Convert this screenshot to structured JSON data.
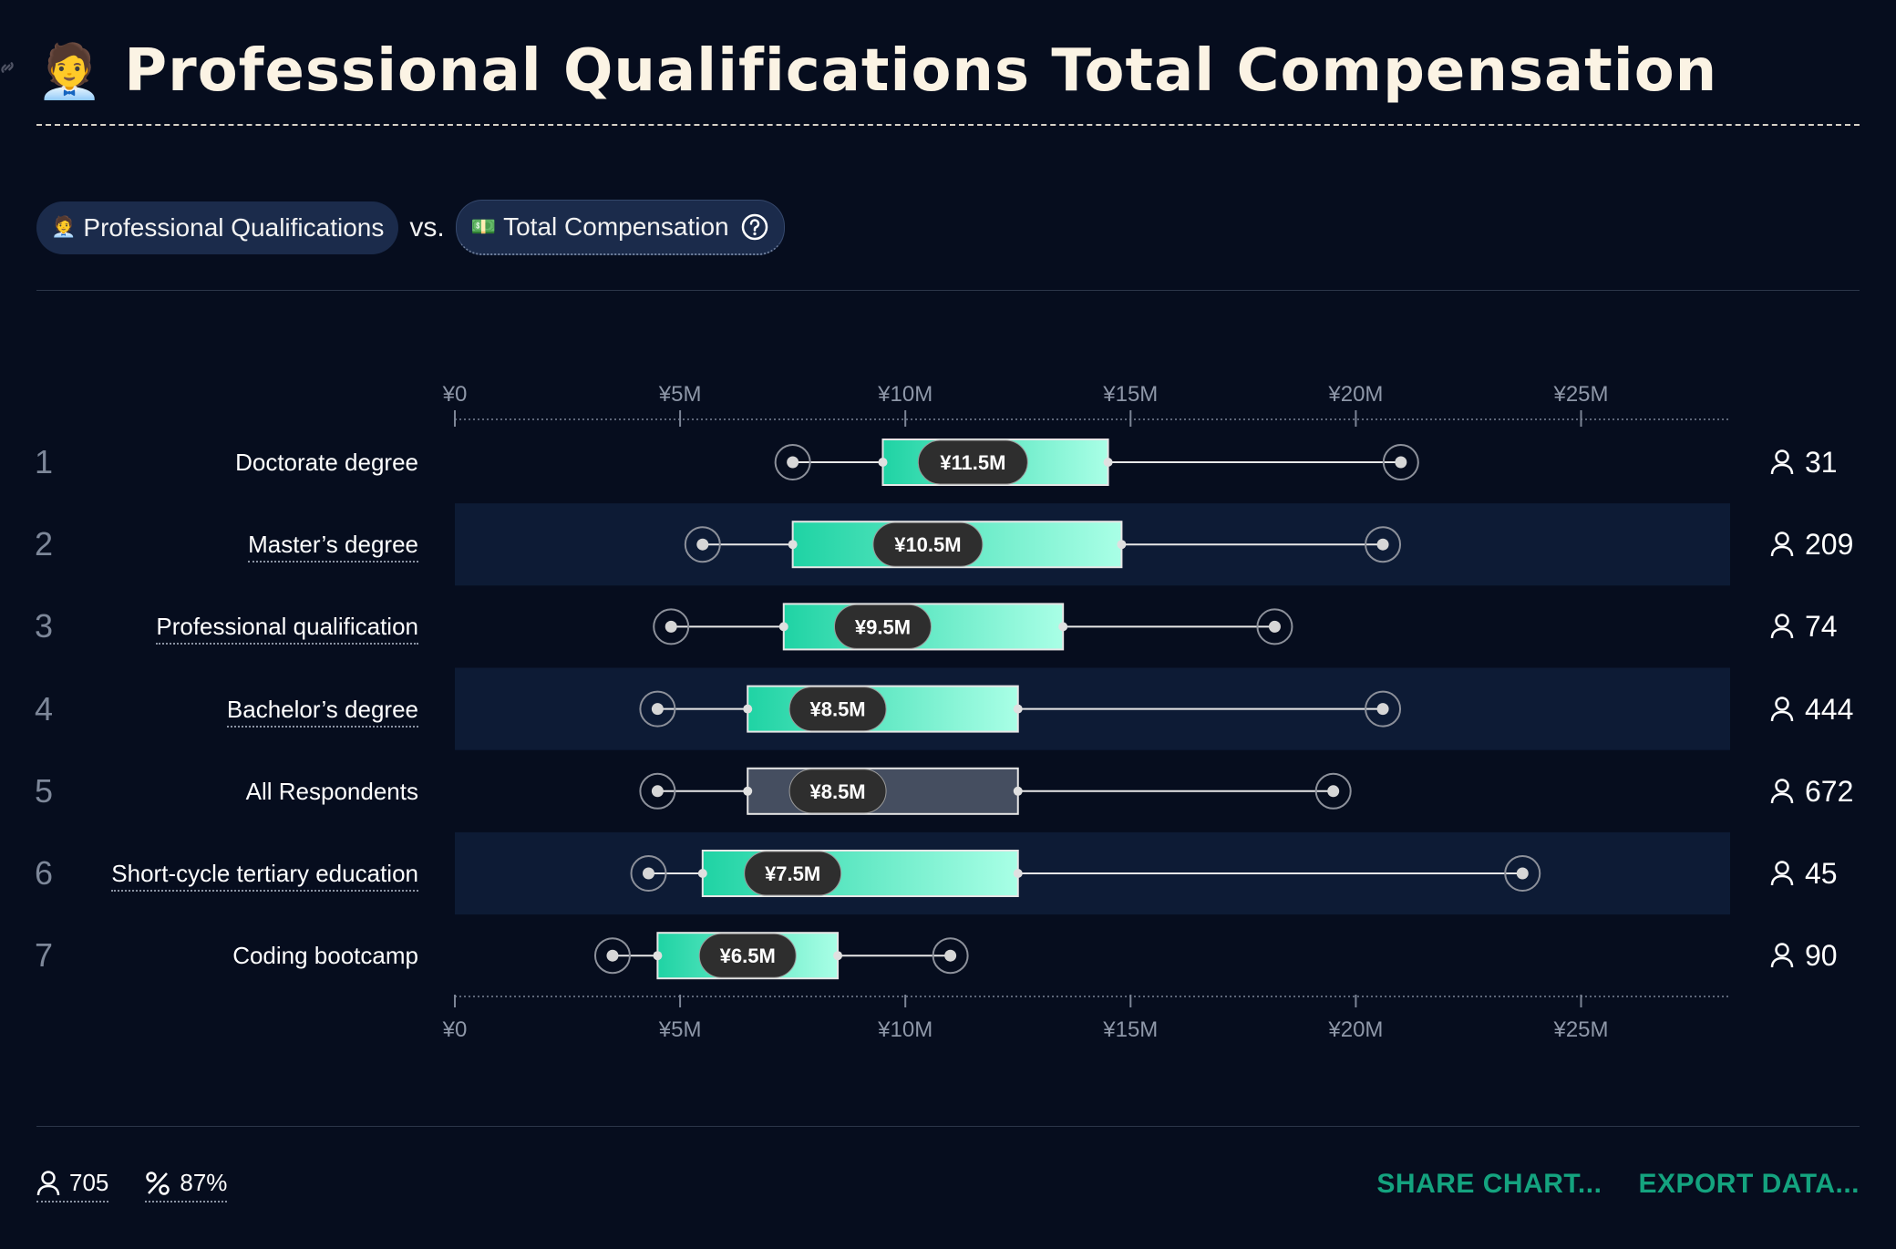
{
  "header": {
    "emoji": "🧑‍💼",
    "title": "Professional Qualifications Total Compensation"
  },
  "selectors": {
    "left": {
      "emoji": "🧑‍💼",
      "label": "Professional Qualifications"
    },
    "vs": "vs.",
    "right": {
      "emoji": "💵",
      "label": "Total Compensation"
    }
  },
  "chart_data": {
    "type": "boxplot",
    "x_ticks": [
      "¥0",
      "¥5M",
      "¥10M",
      "¥15M",
      "¥20M",
      "¥25M"
    ],
    "x_tick_values": [
      0,
      5,
      10,
      15,
      20,
      25
    ],
    "xlim": [
      0,
      28.4
    ],
    "units": "millions of yen",
    "rows": [
      {
        "rank": "1",
        "label": "Doctorate degree",
        "underlined": false,
        "min": 7.5,
        "q1": 9.5,
        "median": 11.5,
        "median_label": "¥11.5M",
        "q3": 14.5,
        "max": 21.0,
        "count": "31",
        "highlight": false
      },
      {
        "rank": "2",
        "label": "Master’s degree",
        "underlined": true,
        "min": 5.5,
        "q1": 7.5,
        "median": 10.5,
        "median_label": "¥10.5M",
        "q3": 14.8,
        "max": 20.6,
        "count": "209",
        "highlight": false
      },
      {
        "rank": "3",
        "label": "Professional qualification",
        "underlined": true,
        "min": 4.8,
        "q1": 7.3,
        "median": 9.5,
        "median_label": "¥9.5M",
        "q3": 13.5,
        "max": 18.2,
        "count": "74",
        "highlight": false
      },
      {
        "rank": "4",
        "label": "Bachelor’s degree",
        "underlined": true,
        "min": 4.5,
        "q1": 6.5,
        "median": 8.5,
        "median_label": "¥8.5M",
        "q3": 12.5,
        "max": 20.6,
        "count": "444",
        "highlight": false
      },
      {
        "rank": "5",
        "label": "All Respondents",
        "underlined": false,
        "min": 4.5,
        "q1": 6.5,
        "median": 8.5,
        "median_label": "¥8.5M",
        "q3": 12.5,
        "max": 19.5,
        "count": "672",
        "highlight": true
      },
      {
        "rank": "6",
        "label": "Short-cycle tertiary education",
        "underlined": true,
        "min": 4.3,
        "q1": 5.5,
        "median": 7.5,
        "median_label": "¥7.5M",
        "q3": 12.5,
        "max": 23.7,
        "count": "45",
        "highlight": false
      },
      {
        "rank": "7",
        "label": "Coding bootcamp",
        "underlined": false,
        "min": 3.5,
        "q1": 4.5,
        "median": 6.5,
        "median_label": "¥6.5M",
        "q3": 8.5,
        "max": 11.0,
        "count": "90",
        "highlight": false
      }
    ]
  },
  "footer": {
    "respondents": "705",
    "percent": "87%",
    "share_label": "SHARE CHART...",
    "export_label": "EXPORT DATA..."
  },
  "colors": {
    "background": "#060d1e",
    "band": "#0d1b35",
    "box_start": "#1fd3a4",
    "box_end": "#a9ffe6",
    "neutral_box": "#454e60",
    "median_pill": "#2e2e2e",
    "accent": "#14a37f"
  }
}
